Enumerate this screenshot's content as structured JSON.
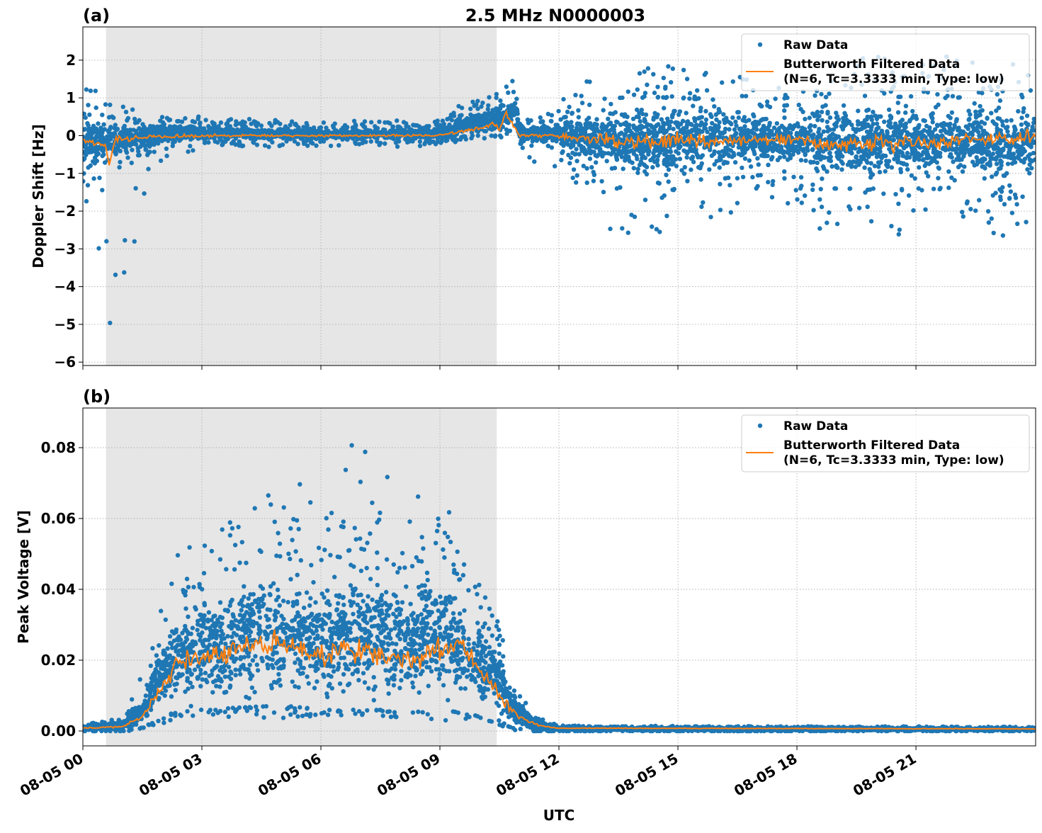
{
  "figure": {
    "title": "2.5 MHz N0000003",
    "xlabel": "UTC",
    "colors": {
      "raw": "#1f77b4",
      "filtered": "#ff7f0e",
      "shade": "#e6e6e6",
      "grid": "#b0b0b0"
    }
  },
  "chart_data": [
    {
      "type": "scatter",
      "panel_label": "(a)",
      "ylabel": "Doppler Shift [Hz]",
      "xlim": [
        "08-05 00:00",
        "08-06 00:01"
      ],
      "ylim": [
        -6.09,
        2.88
      ],
      "yticks": [
        "2",
        "1",
        "0",
        "−1",
        "−2",
        "−3",
        "−4",
        "−5",
        "−6"
      ],
      "ytick_values": [
        2,
        1,
        0,
        -1,
        -2,
        -3,
        -4,
        -5,
        -6
      ],
      "xticks": [
        "08-05 00",
        "08-05 03",
        "08-05 06",
        "08-05 09",
        "08-05 12",
        "08-05 15",
        "08-05 18",
        "08-05 21"
      ],
      "grid": true,
      "shaded_interval": [
        "08-05 00:35",
        "08-05 10:26"
      ],
      "legend": {
        "placement": "top-right",
        "entries": [
          "Raw Data",
          "Butterworth Filtered Data\n(N=6, Tc=3.3333 min, Type: low)"
        ]
      },
      "raw_data_envelope": {
        "time": [
          "00:00",
          "00:35",
          "01:00",
          "01:30",
          "02:00",
          "03:00",
          "06:00",
          "09:00",
          "09:40",
          "10:30",
          "10:55",
          "11:00",
          "12:00",
          "12:45",
          "13:30",
          "15:00",
          "16:30",
          "18:00",
          "18:30",
          "21:00",
          "24:00"
        ],
        "core_min": [
          -1.0,
          -0.9,
          -0.6,
          -0.5,
          -0.3,
          -0.15,
          -0.15,
          -0.15,
          0.0,
          0.0,
          0.2,
          -0.2,
          -0.3,
          -0.9,
          -1.3,
          -1.2,
          -1.1,
          -0.9,
          -1.4,
          -1.4,
          -1.3
        ],
        "core_max": [
          0.8,
          0.5,
          0.4,
          0.3,
          0.4,
          0.3,
          0.2,
          0.25,
          0.6,
          0.9,
          1.2,
          0.3,
          0.4,
          0.8,
          1.0,
          1.0,
          0.9,
          0.6,
          1.1,
          1.0,
          1.0
        ],
        "extreme_min": [
          -1.7,
          -5.7,
          -4.0,
          -2.3,
          -0.8,
          -0.3,
          -0.3,
          -0.3,
          -0.1,
          -0.1,
          0.0,
          -1.0,
          -0.8,
          -2.0,
          -2.8,
          -2.5,
          -2.4,
          -1.8,
          -3.0,
          -3.2,
          -2.5
        ],
        "extreme_max": [
          2.1,
          1.0,
          0.9,
          0.5,
          0.7,
          0.5,
          0.4,
          0.4,
          1.0,
          1.2,
          1.6,
          0.6,
          0.8,
          1.9,
          1.8,
          1.9,
          1.6,
          1.2,
          2.0,
          2.2,
          1.9
        ]
      },
      "filtered_series": {
        "time": [
          "00:00",
          "00:35",
          "00:40",
          "00:50",
          "01:30",
          "03:00",
          "06:00",
          "09:00",
          "10:00",
          "10:20",
          "10:30",
          "10:40",
          "11:00",
          "12:00",
          "13:00",
          "14:00",
          "15:00",
          "16:00",
          "17:00",
          "18:00",
          "19:00",
          "20:00",
          "21:00",
          "22:00",
          "23:00",
          "24:00"
        ],
        "value": [
          -0.1,
          -0.3,
          -0.75,
          -0.1,
          -0.05,
          0.0,
          0.0,
          0.0,
          0.2,
          0.3,
          0.15,
          0.6,
          0.0,
          0.0,
          -0.1,
          -0.2,
          -0.1,
          -0.2,
          -0.1,
          -0.1,
          -0.25,
          -0.15,
          -0.2,
          -0.15,
          -0.1,
          0.0
        ]
      }
    },
    {
      "type": "scatter",
      "panel_label": "(b)",
      "ylabel": "Peak Voltage [V]",
      "xlim": [
        "08-05 00:00",
        "08-06 00:01"
      ],
      "ylim": [
        -0.0042,
        0.0912
      ],
      "yticks": [
        "0.08",
        "0.06",
        "0.04",
        "0.02",
        "0.00"
      ],
      "ytick_values": [
        0.08,
        0.06,
        0.04,
        0.02,
        0.0
      ],
      "xticks": [
        "08-05 00",
        "08-05 03",
        "08-05 06",
        "08-05 09",
        "08-05 12",
        "08-05 15",
        "08-05 18",
        "08-05 21"
      ],
      "grid": true,
      "shaded_interval": [
        "08-05 00:35",
        "08-05 10:26"
      ],
      "legend": {
        "placement": "top-right",
        "entries": [
          "Raw Data",
          "Butterworth Filtered Data\n(N=6, Tc=3.3333 min, Type: low)"
        ]
      },
      "raw_data_envelope": {
        "time": [
          "00:00",
          "01:00",
          "01:30",
          "02:00",
          "02:30",
          "03:00",
          "04:30",
          "05:30",
          "06:00",
          "06:50",
          "07:30",
          "08:00",
          "09:00",
          "09:40",
          "10:20",
          "10:50",
          "11:20",
          "12:00",
          "24:00"
        ],
        "core_min": [
          0.0,
          0.0,
          0.001,
          0.004,
          0.006,
          0.006,
          0.007,
          0.007,
          0.006,
          0.006,
          0.006,
          0.005,
          0.006,
          0.005,
          0.004,
          0.001,
          0.0,
          0.0,
          0.0
        ],
        "core_max": [
          0.0015,
          0.003,
          0.01,
          0.03,
          0.038,
          0.04,
          0.05,
          0.048,
          0.045,
          0.052,
          0.05,
          0.045,
          0.05,
          0.04,
          0.03,
          0.012,
          0.004,
          0.0012,
          0.001
        ],
        "extreme_min": [
          0.0,
          0.0,
          0.0,
          0.002,
          0.004,
          0.004,
          0.003,
          0.003,
          0.004,
          0.004,
          0.004,
          0.003,
          0.003,
          0.003,
          0.002,
          0.0,
          0.0,
          0.0,
          0.0
        ],
        "extreme_max": [
          0.002,
          0.004,
          0.018,
          0.04,
          0.055,
          0.057,
          0.067,
          0.07,
          0.064,
          0.087,
          0.076,
          0.064,
          0.069,
          0.05,
          0.037,
          0.02,
          0.006,
          0.0015,
          0.0012
        ]
      },
      "filtered_series": {
        "time": [
          "00:00",
          "01:00",
          "01:30",
          "02:00",
          "02:30",
          "03:00",
          "04:00",
          "05:00",
          "06:00",
          "07:00",
          "08:00",
          "09:00",
          "09:30",
          "10:00",
          "10:30",
          "11:00",
          "11:30",
          "12:00",
          "24:00"
        ],
        "value": [
          0.0008,
          0.0012,
          0.004,
          0.013,
          0.02,
          0.02,
          0.024,
          0.025,
          0.022,
          0.024,
          0.02,
          0.023,
          0.025,
          0.017,
          0.01,
          0.004,
          0.0015,
          0.0008,
          0.0006
        ]
      }
    }
  ]
}
